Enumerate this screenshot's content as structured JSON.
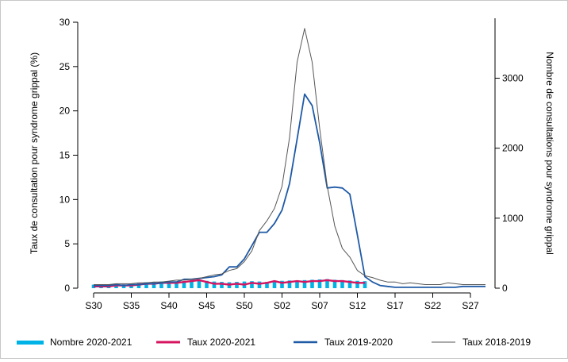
{
  "chart_data": {
    "type": "line",
    "ylabel_left": "Taux de consultation pour syndrome grippal (%)",
    "ylabel_right": "Nombre de consultations pour syndrome grippal",
    "xlabel": "",
    "x_ticks": [
      "S30",
      "S35",
      "S40",
      "S45",
      "S50",
      "S02",
      "S07",
      "S12",
      "S17",
      "S22",
      "S27"
    ],
    "ylim_left": [
      0,
      30
    ],
    "y_ticks_left": [
      "0",
      "5",
      "10",
      "15",
      "20",
      "25",
      "30"
    ],
    "ylim_right": [
      0,
      3800
    ],
    "y_ticks_right": [
      "0",
      "1000",
      "2000",
      "3000"
    ],
    "grid": false,
    "legend_position": "bottom",
    "series": [
      {
        "name": "Nombre 2020-2021",
        "type": "bar",
        "axis": "right",
        "color": "#00b3e6",
        "values": [
          50,
          45,
          55,
          60,
          55,
          60,
          70,
          85,
          90,
          95,
          90,
          85,
          100,
          110,
          120,
          105,
          95,
          90,
          85,
          90,
          95,
          100,
          95,
          90,
          100,
          105,
          110,
          105,
          115,
          120,
          125,
          130,
          120,
          115,
          110,
          105,
          100
        ]
      },
      {
        "name": "Taux 2020-2021",
        "type": "line",
        "axis": "left",
        "color": "#d6145f",
        "values": [
          0.2,
          0.2,
          0.2,
          0.3,
          0.3,
          0.3,
          0.4,
          0.5,
          0.5,
          0.6,
          0.6,
          0.6,
          0.7,
          0.8,
          0.9,
          0.7,
          0.5,
          0.5,
          0.4,
          0.5,
          0.4,
          0.6,
          0.5,
          0.6,
          0.8,
          0.6,
          0.7,
          0.8,
          0.7,
          0.8,
          0.8,
          0.9,
          0.8,
          0.8,
          0.7,
          0.6,
          0.6
        ]
      },
      {
        "name": "Taux 2019-2020",
        "type": "line",
        "axis": "left",
        "color": "#1f5aa6",
        "values": [
          0.3,
          0.3,
          0.3,
          0.4,
          0.3,
          0.4,
          0.4,
          0.5,
          0.5,
          0.6,
          0.7,
          0.7,
          1.0,
          1.0,
          1.1,
          1.2,
          1.3,
          1.5,
          2.4,
          2.4,
          3.3,
          4.8,
          6.3,
          6.3,
          7.3,
          8.8,
          11.8,
          16.8,
          21.9,
          20.6,
          16.4,
          11.3,
          11.4,
          11.3,
          10.6,
          6.0,
          1.3,
          0.7,
          0.3,
          0.2,
          0.1,
          0.1,
          0.1,
          0.1,
          0.1,
          0.1,
          0.1,
          0.1,
          0.1,
          0.2,
          0.2,
          0.2,
          0.2
        ]
      },
      {
        "name": "Taux 2018-2019",
        "type": "line",
        "axis": "left",
        "color": "#555555",
        "values": [
          0.4,
          0.4,
          0.4,
          0.5,
          0.5,
          0.5,
          0.6,
          0.6,
          0.7,
          0.7,
          0.8,
          0.9,
          0.9,
          1.0,
          1.1,
          1.3,
          1.5,
          1.6,
          2.0,
          2.2,
          3.0,
          4.2,
          6.5,
          7.6,
          9.0,
          11.5,
          17.0,
          25.5,
          29.3,
          25.5,
          18.0,
          11.5,
          7.0,
          4.5,
          3.5,
          2.0,
          1.4,
          1.2,
          0.9,
          0.7,
          0.7,
          0.5,
          0.6,
          0.5,
          0.4,
          0.4,
          0.4,
          0.6,
          0.5,
          0.4,
          0.4,
          0.4,
          0.4
        ]
      }
    ]
  },
  "legend": {
    "items": [
      {
        "label": "Nombre 2020-2021"
      },
      {
        "label": "Taux 2020-2021"
      },
      {
        "label": "Taux 2019-2020"
      },
      {
        "label": "Taux 2018-2019"
      }
    ]
  }
}
